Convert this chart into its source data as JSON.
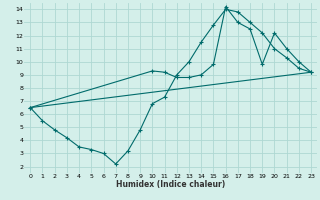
{
  "title": "",
  "xlabel": "Humidex (Indice chaleur)",
  "bg_color": "#d4efea",
  "line_color": "#006b6b",
  "grid_color": "#aed8d3",
  "xlim": [
    -0.5,
    23.5
  ],
  "ylim": [
    1.5,
    14.5
  ],
  "xticks": [
    0,
    1,
    2,
    3,
    4,
    5,
    6,
    7,
    8,
    9,
    10,
    11,
    12,
    13,
    14,
    15,
    16,
    17,
    18,
    19,
    20,
    21,
    22,
    23
  ],
  "yticks": [
    2,
    3,
    4,
    5,
    6,
    7,
    8,
    9,
    10,
    11,
    12,
    13,
    14
  ],
  "line1_x": [
    0,
    1,
    2,
    3,
    4,
    5,
    6,
    7,
    8,
    9,
    10,
    11,
    12,
    13,
    14,
    15,
    16,
    17,
    18,
    19,
    20,
    21,
    22,
    23
  ],
  "line1_y": [
    6.5,
    5.5,
    4.8,
    4.2,
    3.5,
    3.3,
    3.0,
    2.2,
    3.2,
    4.8,
    6.8,
    7.3,
    9.0,
    10.0,
    11.5,
    12.8,
    14.0,
    13.8,
    13.0,
    12.2,
    11.0,
    10.3,
    9.5,
    9.2
  ],
  "line2_x": [
    0,
    10,
    11,
    12,
    13,
    14,
    15,
    16,
    17,
    18,
    19,
    20,
    21,
    22,
    23
  ],
  "line2_y": [
    6.5,
    9.3,
    9.2,
    8.8,
    8.8,
    9.0,
    9.8,
    14.2,
    13.0,
    12.5,
    9.8,
    12.2,
    11.0,
    10.0,
    9.2
  ],
  "line3_x": [
    0,
    23
  ],
  "line3_y": [
    6.5,
    9.2
  ]
}
